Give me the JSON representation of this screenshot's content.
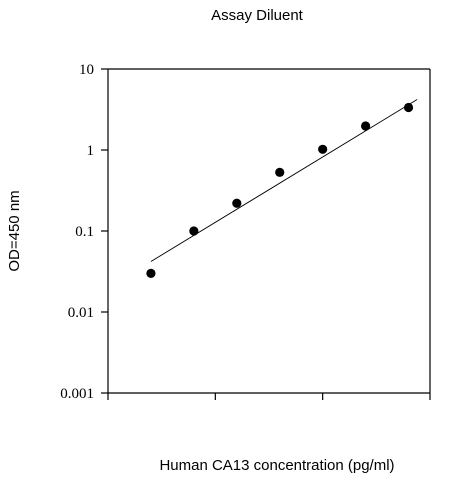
{
  "chart_data": {
    "type": "scatter",
    "title": "Assay Diluent",
    "xlabel": "Human CA13 concentration (pg/ml)",
    "ylabel": "OD=450 nm",
    "yscale": "log",
    "ylim": [
      0.001,
      10
    ],
    "xlim": [
      0,
      7.5
    ],
    "x_ticks": [
      0,
      2.5,
      5,
      7.5
    ],
    "y_ticks": [
      {
        "value": 10,
        "label": "10"
      },
      {
        "value": 1,
        "label": "1"
      },
      {
        "value": 0.1,
        "label": "0.1"
      },
      {
        "value": 0.01,
        "label": "0.01"
      },
      {
        "value": 0.001,
        "label": "0.001"
      }
    ],
    "x_tick_labels_shown": false,
    "grid": false,
    "legend": "none",
    "series": [
      {
        "x": [
          1,
          2,
          3,
          4,
          5,
          6,
          7
        ],
        "values": [
          0.03,
          0.1,
          0.22,
          0.53,
          1.02,
          1.98,
          3.35
        ],
        "marker": "filled-circle",
        "color": "#000000"
      }
    ],
    "fit_line": {
      "x": [
        1,
        7.2
      ],
      "values": [
        0.042,
        4.2
      ],
      "color": "#000000"
    }
  }
}
